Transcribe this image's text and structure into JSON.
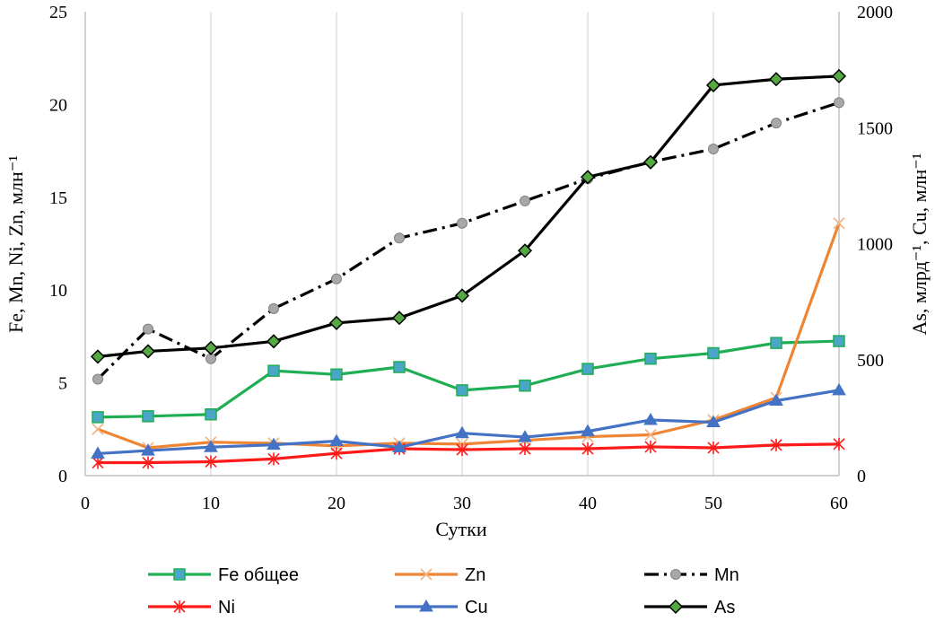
{
  "chart_data": {
    "type": "line",
    "title": "",
    "xlabel": "Сутки",
    "ylabel_left": "Fe, Mn, Ni, Zn, млн⁻¹",
    "ylabel_right": "As, млрд⁻¹, Cu, млн⁻¹",
    "xlim": [
      0,
      60
    ],
    "ylim_left": [
      0,
      25
    ],
    "ylim_right": [
      0,
      2000
    ],
    "x_ticks": [
      0,
      10,
      20,
      30,
      40,
      50,
      60
    ],
    "y_ticks_left": [
      0,
      5,
      10,
      15,
      20,
      25
    ],
    "y_ticks_right": [
      0,
      500,
      1000,
      1500,
      2000
    ],
    "grid": "vertical",
    "legend_position": "bottom",
    "x": [
      1,
      5,
      10,
      15,
      20,
      25,
      30,
      35,
      40,
      45,
      50,
      55,
      60
    ],
    "series": [
      {
        "name": "Fe общее",
        "axis": "left",
        "color": "#1fae54",
        "dash": "solid",
        "marker": "square",
        "marker_color": "#4aa6c6",
        "values": [
          3.15,
          3.2,
          3.3,
          5.65,
          5.45,
          5.85,
          4.6,
          4.85,
          5.75,
          6.3,
          6.6,
          7.15,
          7.25
        ]
      },
      {
        "name": "Zn",
        "axis": "left",
        "color": "#ee8535",
        "dash": "solid",
        "marker": "x",
        "marker_color": "#f2b68a",
        "values": [
          2.5,
          1.5,
          1.8,
          1.75,
          1.6,
          1.75,
          1.7,
          1.9,
          2.1,
          2.2,
          3.0,
          4.2,
          13.6
        ]
      },
      {
        "name": "Mn",
        "axis": "left",
        "color": "#000000",
        "dash": "dashdot",
        "marker": "circle",
        "marker_color": "#a8a8a8",
        "values": [
          5.2,
          7.9,
          6.3,
          9.0,
          10.6,
          12.8,
          13.6,
          14.8,
          16.0,
          16.9,
          17.6,
          19.0,
          20.1
        ]
      },
      {
        "name": "Ni",
        "axis": "left",
        "color": "#ff1a1a",
        "dash": "solid",
        "marker": "asterisk",
        "marker_color": "#ff1a1a",
        "values": [
          0.7,
          0.7,
          0.75,
          0.9,
          1.2,
          1.45,
          1.4,
          1.45,
          1.45,
          1.55,
          1.5,
          1.65,
          1.7
        ]
      },
      {
        "name": "Cu",
        "axis": "right",
        "color": "#4472c4",
        "dash": "solid",
        "marker": "triangle",
        "marker_color": "#4472c4",
        "values": [
          95,
          108,
          123,
          133,
          149,
          122,
          183,
          166,
          191,
          240,
          230,
          323,
          368
        ]
      },
      {
        "name": "As",
        "axis": "right",
        "color": "#000000",
        "dash": "solid",
        "marker": "diamond",
        "marker_color": "#56a843",
        "values": [
          513,
          536,
          550,
          579,
          658,
          680,
          776,
          970,
          1287,
          1351,
          1683,
          1709,
          1722
        ]
      }
    ]
  }
}
